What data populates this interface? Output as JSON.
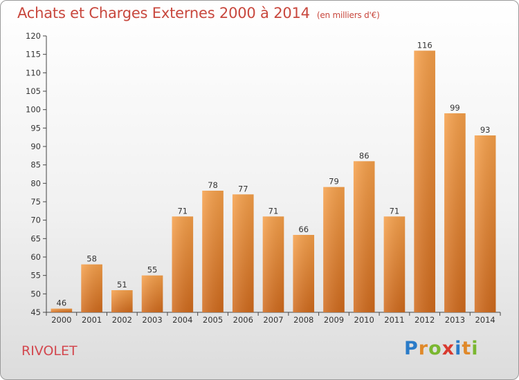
{
  "title": "Achats et Charges Externes 2000 à 2014",
  "subtitle": "(en milliers d'€)",
  "town": "RIVOLET",
  "logo": {
    "letters": [
      "P",
      "r",
      "o",
      "x",
      "i",
      "t",
      "i"
    ],
    "colors": [
      "#2a7bc8",
      "#e0892a",
      "#7ab730",
      "#d83a2f",
      "#2a7bc8",
      "#e0892a",
      "#7ab730"
    ]
  },
  "chart_data": {
    "type": "bar",
    "title": "Achats et Charges Externes 2000 à 2014",
    "subtitle": "(en milliers d'€)",
    "categories": [
      "2000",
      "2001",
      "2002",
      "2003",
      "2004",
      "2005",
      "2006",
      "2007",
      "2008",
      "2009",
      "2010",
      "2011",
      "2012",
      "2013",
      "2014"
    ],
    "values": [
      46,
      58,
      51,
      55,
      71,
      78,
      77,
      71,
      66,
      79,
      86,
      71,
      116,
      99,
      93
    ],
    "ylim": [
      45,
      120
    ],
    "yticks": [
      45,
      50,
      55,
      60,
      65,
      70,
      75,
      80,
      85,
      90,
      95,
      100,
      105,
      110,
      115,
      120
    ],
    "grid": false,
    "bar_color": "#f0963c",
    "bar_color_dark": "#d06a1c",
    "axis_color": "#444444"
  }
}
